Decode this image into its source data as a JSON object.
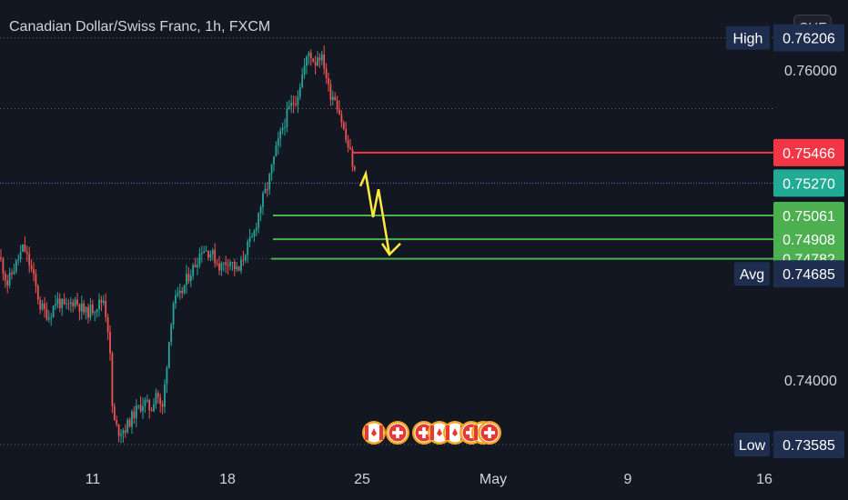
{
  "header": {
    "title": "Canadian Dollar/Swiss Franc, 1h, FXCM",
    "currency": "CHF"
  },
  "chart_data": {
    "type": "candlestick",
    "symbol": "CADCHF",
    "timeframe": "1h",
    "yaxis": {
      "ylim": [
        0.7345,
        0.7645
      ],
      "ticks": [
        "0.74000",
        "0.76000"
      ]
    },
    "xaxis": {
      "ticks": [
        "11",
        "18",
        "25",
        "May",
        "9",
        "16"
      ]
    },
    "price_labels": [
      {
        "label": "High",
        "value": "0.76206",
        "color": "#1f2d4f"
      },
      {
        "label": "",
        "value": "0.75466",
        "color": "#f23645"
      },
      {
        "label": "",
        "value": "0.75270",
        "color": "#22ab94"
      },
      {
        "label": "",
        "value": "0.75061",
        "color": "#4caf50"
      },
      {
        "label": "",
        "value": "0.74908",
        "color": "#4caf50"
      },
      {
        "label": "",
        "value": "0.74782",
        "color": "#4caf50"
      },
      {
        "label": "Avg",
        "value": "0.74685",
        "color": "#1f2d4f"
      },
      {
        "label": "Low",
        "value": "0.73585",
        "color": "#1f2d4f"
      }
    ],
    "levels": {
      "stop_loss": 0.75466,
      "current": 0.7527,
      "targets": [
        0.75061,
        0.74908,
        0.74782
      ]
    },
    "projection": "down",
    "event_markers": [
      "CAD",
      "CHF",
      "CHF",
      "CAD",
      "CAD",
      "CHF",
      "CAD",
      "CHF"
    ],
    "colors": {
      "up": "#26a69a",
      "down": "#ef5350",
      "background": "#131722",
      "target_line": "#4caf50",
      "stop_line": "#f23645",
      "arrow": "#ffeb3b"
    },
    "price_path": [
      [
        0,
        0.7479
      ],
      [
        8,
        0.7462
      ],
      [
        16,
        0.7473
      ],
      [
        26,
        0.7486
      ],
      [
        36,
        0.7468
      ],
      [
        44,
        0.7448
      ],
      [
        54,
        0.7441
      ],
      [
        62,
        0.7452
      ],
      [
        72,
        0.7446
      ],
      [
        82,
        0.7452
      ],
      [
        94,
        0.7443
      ],
      [
        104,
        0.7447
      ],
      [
        114,
        0.7452
      ],
      [
        120,
        0.7428
      ],
      [
        124,
        0.7375
      ],
      [
        130,
        0.7367
      ],
      [
        138,
        0.7369
      ],
      [
        148,
        0.7379
      ],
      [
        158,
        0.7386
      ],
      [
        166,
        0.7381
      ],
      [
        172,
        0.7394
      ],
      [
        178,
        0.7378
      ],
      [
        184,
        0.7415
      ],
      [
        190,
        0.745
      ],
      [
        198,
        0.7454
      ],
      [
        206,
        0.7466
      ],
      [
        214,
        0.7474
      ],
      [
        222,
        0.7485
      ],
      [
        232,
        0.7482
      ],
      [
        242,
        0.7473
      ],
      [
        252,
        0.7478
      ],
      [
        262,
        0.7469
      ],
      [
        270,
        0.7484
      ],
      [
        278,
        0.7492
      ],
      [
        286,
        0.7512
      ],
      [
        294,
        0.7525
      ],
      [
        302,
        0.7545
      ],
      [
        310,
        0.7562
      ],
      [
        318,
        0.7575
      ],
      [
        326,
        0.7582
      ],
      [
        334,
        0.7601
      ],
      [
        340,
        0.7612
      ],
      [
        346,
        0.7604
      ],
      [
        350,
        0.7611
      ],
      [
        356,
        0.7604
      ],
      [
        362,
        0.7585
      ],
      [
        368,
        0.7583
      ],
      [
        374,
        0.7571
      ],
      [
        380,
        0.7555
      ],
      [
        386,
        0.7544
      ],
      [
        392,
        0.7527
      ]
    ]
  }
}
